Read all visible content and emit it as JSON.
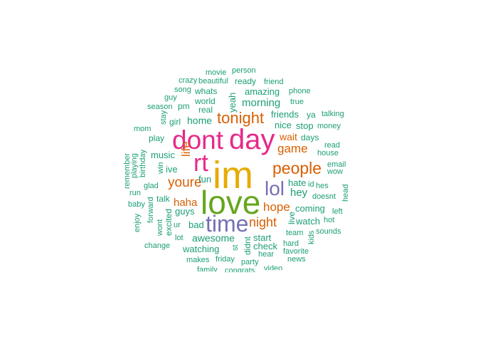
{
  "palette": {
    "teal": "#1b9e77",
    "orange": "#d95f02",
    "purple": "#7570b3",
    "magenta": "#e7298a",
    "green": "#66a61e",
    "gold": "#e6ab02"
  },
  "chart_data": {
    "type": "wordcloud",
    "words": [
      {
        "text": "im",
        "size_rank": 1,
        "color": "#e6ab02"
      },
      {
        "text": "love",
        "size_rank": 2,
        "color": "#66a61e"
      },
      {
        "text": "day",
        "size_rank": 2,
        "color": "#e7298a"
      },
      {
        "text": "dont",
        "size_rank": 2,
        "color": "#e7298a"
      },
      {
        "text": "rt",
        "size_rank": 2,
        "color": "#e7298a"
      },
      {
        "text": "time",
        "size_rank": 3,
        "color": "#7570b3"
      },
      {
        "text": "lol",
        "size_rank": 3,
        "color": "#7570b3"
      },
      {
        "text": "people",
        "size_rank": 4,
        "color": "#d95f02"
      },
      {
        "text": "tonight",
        "size_rank": 4,
        "color": "#d95f02"
      },
      {
        "text": "youre",
        "size_rank": 4,
        "color": "#d95f02"
      },
      {
        "text": "night",
        "size_rank": 4,
        "color": "#d95f02"
      },
      {
        "text": "game",
        "size_rank": 5,
        "color": "#d95f02"
      },
      {
        "text": "hope",
        "size_rank": 5,
        "color": "#d95f02"
      },
      {
        "text": "life",
        "size_rank": 5,
        "color": "#d95f02"
      },
      {
        "text": "haha",
        "size_rank": 5,
        "color": "#d95f02"
      },
      {
        "text": "wait",
        "size_rank": 5,
        "color": "#d95f02"
      },
      {
        "text": "hey",
        "size_rank": 5,
        "color": "#1b9e77"
      },
      {
        "text": "morning",
        "size_rank": 6,
        "color": "#1b9e77"
      },
      {
        "text": "home",
        "size_rank": 6,
        "color": "#1b9e77"
      },
      {
        "text": "awesome",
        "size_rank": 6,
        "color": "#1b9e77"
      },
      {
        "text": "amazing",
        "size_rank": 7,
        "color": "#1b9e77"
      },
      {
        "text": "friends",
        "size_rank": 7,
        "color": "#1b9e77"
      },
      {
        "text": "nice",
        "size_rank": 7,
        "color": "#1b9e77"
      },
      {
        "text": "stop",
        "size_rank": 7,
        "color": "#1b9e77"
      },
      {
        "text": "yeah",
        "size_rank": 7,
        "color": "#1b9e77"
      },
      {
        "text": "music",
        "size_rank": 7,
        "color": "#1b9e77"
      },
      {
        "text": "ive",
        "size_rank": 7,
        "color": "#1b9e77"
      },
      {
        "text": "fun",
        "size_rank": 7,
        "color": "#1b9e77"
      },
      {
        "text": "guys",
        "size_rank": 7,
        "color": "#1b9e77"
      },
      {
        "text": "bad",
        "size_rank": 7,
        "color": "#1b9e77"
      },
      {
        "text": "hate",
        "size_rank": 7,
        "color": "#1b9e77"
      },
      {
        "text": "coming",
        "size_rank": 7,
        "color": "#1b9e77"
      },
      {
        "text": "watch",
        "size_rank": 7,
        "color": "#1b9e77"
      },
      {
        "text": "start",
        "size_rank": 7,
        "color": "#1b9e77"
      },
      {
        "text": "check",
        "size_rank": 7,
        "color": "#1b9e77"
      },
      {
        "text": "watching",
        "size_rank": 7,
        "color": "#1b9e77"
      },
      {
        "text": "whats",
        "size_rank": 8,
        "color": "#1b9e77"
      },
      {
        "text": "ready",
        "size_rank": 8,
        "color": "#1b9e77"
      },
      {
        "text": "world",
        "size_rank": 8,
        "color": "#1b9e77"
      },
      {
        "text": "pm",
        "size_rank": 8,
        "color": "#1b9e77"
      },
      {
        "text": "real",
        "size_rank": 8,
        "color": "#1b9e77"
      },
      {
        "text": "girl",
        "size_rank": 8,
        "color": "#1b9e77"
      },
      {
        "text": "play",
        "size_rank": 8,
        "color": "#1b9e77"
      },
      {
        "text": "days",
        "size_rank": 8,
        "color": "#1b9e77"
      },
      {
        "text": "ya",
        "size_rank": 8,
        "color": "#1b9e77"
      },
      {
        "text": "live",
        "size_rank": 8,
        "color": "#1b9e77"
      },
      {
        "text": "talk",
        "size_rank": 8,
        "color": "#1b9e77"
      },
      {
        "text": "didnt",
        "size_rank": 8,
        "color": "#1b9e77"
      },
      {
        "text": "movie",
        "size_rank": 9,
        "color": "#1b9e77"
      },
      {
        "text": "person",
        "size_rank": 9,
        "color": "#1b9e77"
      },
      {
        "text": "crazy",
        "size_rank": 9,
        "color": "#1b9e77"
      },
      {
        "text": "beautiful",
        "size_rank": 9,
        "color": "#1b9e77"
      },
      {
        "text": "friend",
        "size_rank": 9,
        "color": "#1b9e77"
      },
      {
        "text": "song",
        "size_rank": 9,
        "color": "#1b9e77"
      },
      {
        "text": "phone",
        "size_rank": 9,
        "color": "#1b9e77"
      },
      {
        "text": "guy",
        "size_rank": 9,
        "color": "#1b9e77"
      },
      {
        "text": "season",
        "size_rank": 9,
        "color": "#1b9e77"
      },
      {
        "text": "true",
        "size_rank": 9,
        "color": "#1b9e77"
      },
      {
        "text": "stay",
        "size_rank": 9,
        "color": "#1b9e77"
      },
      {
        "text": "talking",
        "size_rank": 9,
        "color": "#1b9e77"
      },
      {
        "text": "mom",
        "size_rank": 9,
        "color": "#1b9e77"
      },
      {
        "text": "money",
        "size_rank": 9,
        "color": "#1b9e77"
      },
      {
        "text": "birthday",
        "size_rank": 9,
        "color": "#1b9e77"
      },
      {
        "text": "read",
        "size_rank": 9,
        "color": "#1b9e77"
      },
      {
        "text": "house",
        "size_rank": 9,
        "color": "#1b9e77"
      },
      {
        "text": "remember",
        "size_rank": 9,
        "color": "#1b9e77"
      },
      {
        "text": "playing",
        "size_rank": 9,
        "color": "#1b9e77"
      },
      {
        "text": "win",
        "size_rank": 9,
        "color": "#1b9e77"
      },
      {
        "text": "email",
        "size_rank": 9,
        "color": "#1b9e77"
      },
      {
        "text": "wow",
        "size_rank": 9,
        "color": "#1b9e77"
      },
      {
        "text": "glad",
        "size_rank": 9,
        "color": "#1b9e77"
      },
      {
        "text": "id",
        "size_rank": 9,
        "color": "#1b9e77"
      },
      {
        "text": "hes",
        "size_rank": 9,
        "color": "#1b9e77"
      },
      {
        "text": "head",
        "size_rank": 9,
        "color": "#1b9e77"
      },
      {
        "text": "run",
        "size_rank": 9,
        "color": "#1b9e77"
      },
      {
        "text": "doesnt",
        "size_rank": 9,
        "color": "#1b9e77"
      },
      {
        "text": "baby",
        "size_rank": 9,
        "color": "#1b9e77"
      },
      {
        "text": "forward",
        "size_rank": 9,
        "color": "#1b9e77"
      },
      {
        "text": "excited",
        "size_rank": 9,
        "color": "#1b9e77"
      },
      {
        "text": "left",
        "size_rank": 9,
        "color": "#1b9e77"
      },
      {
        "text": "enjoy",
        "size_rank": 9,
        "color": "#1b9e77"
      },
      {
        "text": "ur",
        "size_rank": 9,
        "color": "#1b9e77"
      },
      {
        "text": "hot",
        "size_rank": 9,
        "color": "#1b9e77"
      },
      {
        "text": "wont",
        "size_rank": 9,
        "color": "#1b9e77"
      },
      {
        "text": "team",
        "size_rank": 9,
        "color": "#1b9e77"
      },
      {
        "text": "sounds",
        "size_rank": 9,
        "color": "#1b9e77"
      },
      {
        "text": "kids",
        "size_rank": 9,
        "color": "#1b9e77"
      },
      {
        "text": "lot",
        "size_rank": 9,
        "color": "#1b9e77"
      },
      {
        "text": "change",
        "size_rank": 9,
        "color": "#1b9e77"
      },
      {
        "text": "st",
        "size_rank": 9,
        "color": "#1b9e77"
      },
      {
        "text": "hard",
        "size_rank": 9,
        "color": "#1b9e77"
      },
      {
        "text": "favorite",
        "size_rank": 9,
        "color": "#1b9e77"
      },
      {
        "text": "hear",
        "size_rank": 9,
        "color": "#1b9e77"
      },
      {
        "text": "news",
        "size_rank": 9,
        "color": "#1b9e77"
      },
      {
        "text": "makes",
        "size_rank": 9,
        "color": "#1b9e77"
      },
      {
        "text": "friday",
        "size_rank": 9,
        "color": "#1b9e77"
      },
      {
        "text": "party",
        "size_rank": 9,
        "color": "#1b9e77"
      },
      {
        "text": "family",
        "size_rank": 9,
        "color": "#1b9e77"
      },
      {
        "text": "congrats",
        "size_rank": 9,
        "color": "#1b9e77"
      },
      {
        "text": "video",
        "size_rank": 9,
        "color": "#1b9e77"
      }
    ]
  }
}
